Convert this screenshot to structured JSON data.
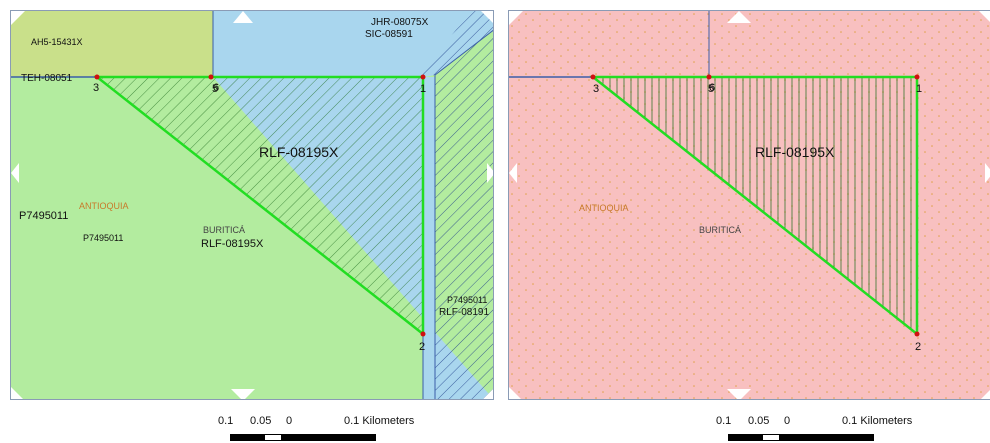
{
  "left_map": {
    "parcels": {
      "ah5": "AH5-15431X",
      "teh": "TEH-08051",
      "jhr": "JHR-08075X",
      "sic": "SIC-08591",
      "rlf_main": "RLF-08195X",
      "rlf_main_small": "RLF-08195X",
      "p749_a": "P7495011",
      "p749_b": "P7495011",
      "p749_c": "P7495011",
      "rlf_east": "RLF-08191"
    },
    "region_label": "ANTIOQUIA",
    "municipality_label": "BURITICÁ",
    "vertices": [
      "3",
      "5",
      "6",
      "1",
      "2"
    ]
  },
  "right_map": {
    "parcel": "RLF-08195X",
    "region_label": "ANTIOQUIA",
    "municipality_label": "BURITICÁ",
    "vertices": [
      "3",
      "5",
      "6",
      "1",
      "2"
    ]
  },
  "scale_left": {
    "ticks": [
      "0.1",
      "0.05",
      "0",
      "0.1 Kilometers"
    ]
  },
  "scale_right": {
    "ticks": [
      "0.1",
      "0.05",
      "0",
      "0.1 Kilometers"
    ]
  },
  "colors": {
    "green_fill": "#b3ec9f",
    "olive_fill": "#c9e08a",
    "blue_fill": "#a9d6ee",
    "pink_fill": "#f8c0c0",
    "polygon_outline": "#22dd22",
    "region_text": "#c87a2a",
    "nav_arrow": "#ffffff"
  },
  "icons": [
    "nav-arrow-up-icon",
    "nav-arrow-down-icon",
    "nav-arrow-left-icon",
    "nav-arrow-right-icon",
    "vertex-marker-icon"
  ]
}
